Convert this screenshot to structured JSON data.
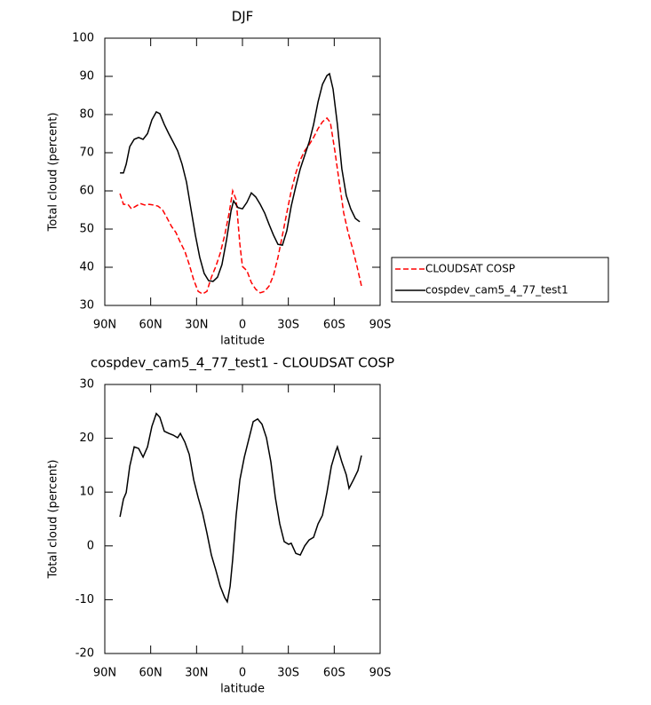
{
  "chart_data": [
    {
      "type": "line",
      "title": "DJF",
      "x_label": "latitude",
      "y_label": "Total cloud (percent)",
      "xlim": [
        90,
        -90
      ],
      "ylim": [
        30,
        100
      ],
      "xticks": [
        {
          "value": 90,
          "label": "90N"
        },
        {
          "value": 60,
          "label": "60N"
        },
        {
          "value": 30,
          "label": "30N"
        },
        0,
        {
          "value": -30,
          "label": "30S"
        },
        {
          "value": -60,
          "label": "60S"
        },
        {
          "value": -90,
          "label": "90S"
        }
      ],
      "yticks": [
        30,
        40,
        50,
        60,
        70,
        80,
        90,
        100
      ],
      "legend": "right",
      "series": [
        {
          "name": "CLOUDSAT COSP",
          "color": "#ff0000",
          "dash": true,
          "x": [
            80.1,
            77.8,
            74.9,
            72.6,
            69.7,
            66.8,
            63.9,
            61,
            58,
            55.2,
            52.3,
            49.4,
            46.4,
            43.5,
            40.6,
            37.7,
            34.8,
            31.9,
            29,
            26.1,
            23.2,
            20.3,
            17.4,
            14.5,
            11.6,
            8.7,
            6.4,
            4.1,
            1.7,
            0,
            -2.9,
            -5.8,
            -8.7,
            -11.6,
            -14.5,
            -17.4,
            -20.3,
            -23.2,
            -26.1,
            -29,
            -31.9,
            -34.9,
            -37.8,
            -40.7,
            -43.6,
            -46.5,
            -49.4,
            -52.3,
            -55.2,
            -57.5,
            -60.4,
            -63.3,
            -66.2,
            -69.1,
            -72,
            -74.9,
            -77.8
          ],
          "values": [
            59.3,
            56.5,
            56.5,
            55.3,
            56,
            56.7,
            56.3,
            56.5,
            56.3,
            56,
            55.1,
            53,
            50.7,
            49.1,
            46.5,
            44.2,
            40.7,
            36.7,
            33.7,
            33,
            33.7,
            37.4,
            40.2,
            43.7,
            48.4,
            54.2,
            60,
            57.7,
            46,
            40.2,
            39.1,
            36,
            34.2,
            33.3,
            33.7,
            35.1,
            37.9,
            42.6,
            48.4,
            54.2,
            60,
            64.7,
            68.1,
            70.5,
            72.1,
            74,
            76.3,
            78.1,
            79.1,
            77.9,
            70.5,
            62.3,
            54.2,
            49.1,
            44.9,
            40.2,
            35.1
          ]
        },
        {
          "name": "cospdev_cam5_4_77_test1",
          "color": "#000000",
          "dash": false,
          "x": [
            80.1,
            77.8,
            76,
            73.7,
            70.8,
            67.9,
            65,
            62.1,
            59.2,
            56.3,
            54,
            51.1,
            48.2,
            45.3,
            42.4,
            39.5,
            36.6,
            33.7,
            30.8,
            27.9,
            25,
            22.1,
            19.2,
            16.3,
            13.4,
            10.4,
            7.5,
            5.8,
            2.9,
            0,
            -2.9,
            -5.8,
            -8.7,
            -11.6,
            -14.5,
            -17.4,
            -20.3,
            -23.2,
            -26.1,
            -29,
            -31.9,
            -34.9,
            -37.8,
            -40.7,
            -43.6,
            -46.5,
            -49.4,
            -52.3,
            -55.2,
            -56.9,
            -59.2,
            -62.1,
            -65,
            -67.9,
            -70.8,
            -73.8,
            -76.7
          ],
          "values": [
            64.7,
            64.7,
            67,
            71.6,
            73.5,
            74,
            73.5,
            75,
            78.6,
            80.7,
            80.2,
            77.4,
            75,
            72.8,
            70.5,
            67,
            62.3,
            55.3,
            48.4,
            42.6,
            38.4,
            36.5,
            36.3,
            37.4,
            40.7,
            47.2,
            54.7,
            57.4,
            55.6,
            55.3,
            57,
            59.5,
            58.4,
            56.5,
            54.2,
            51.2,
            48.4,
            46,
            45.8,
            49.5,
            56,
            61.2,
            65.8,
            69.3,
            72.8,
            77.4,
            83.3,
            87.9,
            90.2,
            90.7,
            86.7,
            77.4,
            65.8,
            58.8,
            55.3,
            52.8,
            51.9
          ]
        }
      ]
    },
    {
      "type": "line",
      "title": "cospdev_cam5_4_77_test1 - CLOUDSAT COSP",
      "x_label": "latitude",
      "y_label": "Total cloud (percent)",
      "xlim": [
        90,
        -90
      ],
      "ylim": [
        -20,
        30
      ],
      "xticks": [
        {
          "value": 90,
          "label": "90N"
        },
        {
          "value": 60,
          "label": "60N"
        },
        {
          "value": 30,
          "label": "30N"
        },
        0,
        {
          "value": -30,
          "label": "30S"
        },
        {
          "value": -60,
          "label": "60S"
        },
        {
          "value": -90,
          "label": "90S"
        }
      ],
      "yticks": [
        -20,
        -10,
        0,
        10,
        20,
        30
      ],
      "series": [
        {
          "color": "#000000",
          "dash": false,
          "x": [
            80.1,
            77.8,
            76,
            73.7,
            70.8,
            67.9,
            65,
            62.1,
            59.2,
            56.3,
            54,
            51.1,
            48.2,
            45.3,
            42.4,
            40.6,
            37.7,
            34.8,
            31.9,
            29,
            26.1,
            23.2,
            20.3,
            17.4,
            14.5,
            11.6,
            9.9,
            8.1,
            6.4,
            4.1,
            1.7,
            -1.2,
            -4.1,
            -7,
            -9.9,
            -12.8,
            -15.7,
            -18.6,
            -21.5,
            -24.4,
            -27.3,
            -30.2,
            -31.9,
            -34.9,
            -37.8,
            -40.7,
            -43.6,
            -46.5,
            -49.4,
            -52.3,
            -55.2,
            -58.1,
            -61,
            -62.1,
            -65,
            -67.9,
            -69.7,
            -72.6,
            -75.5,
            -77.8
          ],
          "values": [
            5.4,
            8.7,
            9.9,
            14.8,
            18.4,
            18.1,
            16.5,
            18.4,
            22.2,
            24.6,
            23.9,
            21.3,
            20.9,
            20.6,
            20.1,
            20.9,
            19.3,
            17,
            12.3,
            9,
            6.1,
            2.4,
            -1.7,
            -4.5,
            -7.5,
            -9.6,
            -10.4,
            -7.5,
            -2.5,
            5.7,
            12.3,
            16.5,
            19.8,
            23.1,
            23.6,
            22.6,
            20.1,
            15.6,
            9,
            4.1,
            0.8,
            0.3,
            0.5,
            -1.4,
            -1.7,
            0,
            1.1,
            1.6,
            4.1,
            5.7,
            9.9,
            14.8,
            17.6,
            18.4,
            15.6,
            13.2,
            10.7,
            12.3,
            14,
            16.8
          ]
        }
      ]
    }
  ]
}
